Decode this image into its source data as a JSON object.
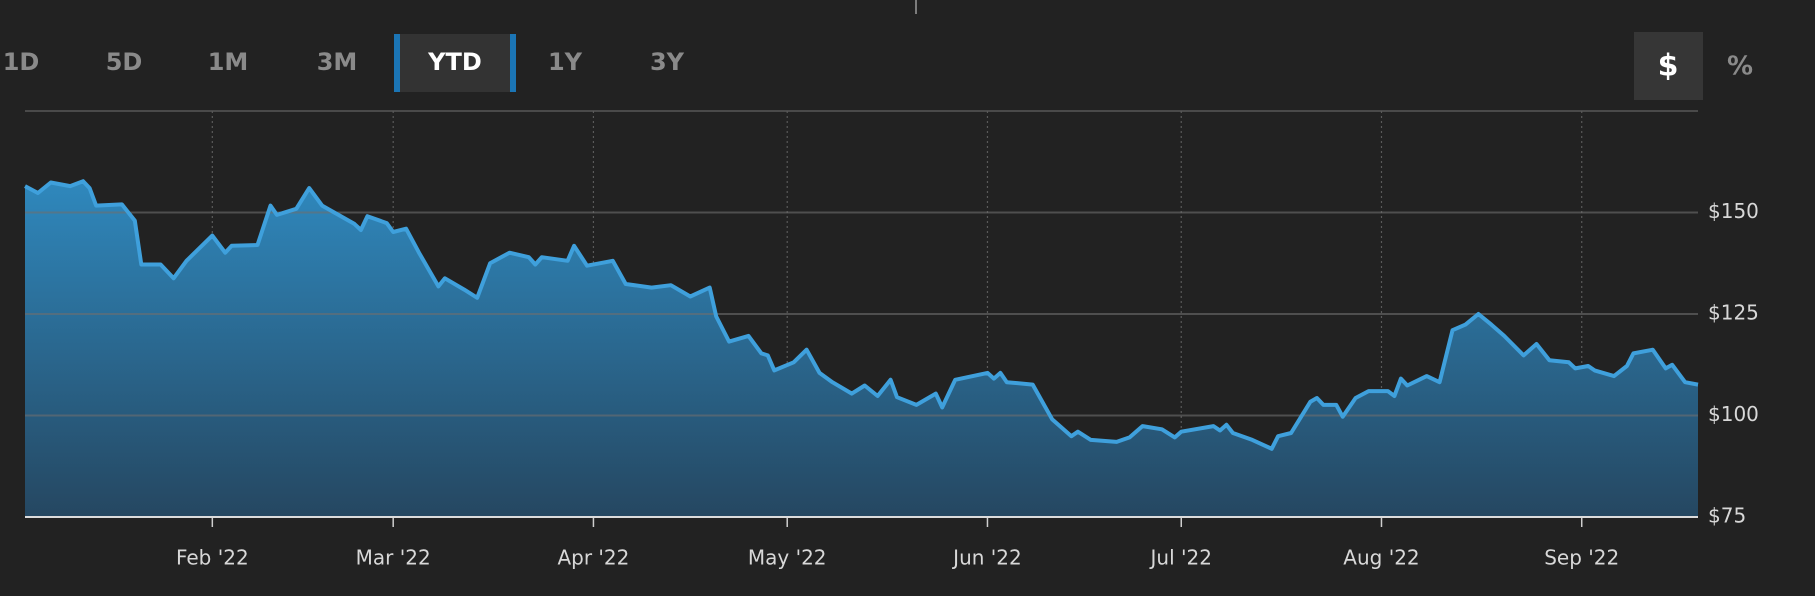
{
  "toolbar": {
    "ranges": [
      "1D",
      "5D",
      "1M",
      "3M",
      "YTD",
      "1Y",
      "3Y"
    ],
    "selected_range": "YTD",
    "units": [
      "$",
      "%"
    ],
    "selected_unit": "$"
  },
  "chart_data": {
    "type": "area",
    "color": "#3fa0dc",
    "grid": true,
    "x": [
      0,
      2,
      4,
      7,
      9,
      10,
      11,
      15,
      17,
      18,
      21,
      23,
      25,
      29,
      31,
      32,
      36,
      38,
      39,
      42,
      44,
      46,
      51,
      52,
      53,
      56,
      57,
      59,
      61,
      64,
      65,
      68,
      70,
      72,
      75,
      78,
      79,
      80,
      84,
      85,
      87,
      91,
      93,
      97,
      100,
      103,
      106,
      107,
      109,
      112,
      114,
      115,
      116,
      119,
      121,
      123,
      125,
      128,
      130,
      132,
      134,
      135,
      138,
      141,
      142,
      144,
      149,
      150,
      151,
      152,
      156,
      159,
      162,
      163,
      165,
      169,
      171,
      173,
      176,
      178,
      179,
      184,
      185,
      186,
      187,
      190,
      193,
      194,
      196,
      199,
      200,
      201,
      203,
      204,
      206,
      208,
      211,
      212,
      213,
      214,
      217,
      219,
      221,
      223,
      225,
      227,
      229,
      232,
      234,
      236,
      239,
      240,
      242,
      243,
      246,
      248,
      249,
      252,
      254,
      255,
      257,
      259
    ],
    "values": [
      156.5,
      154.8,
      157.4,
      156.5,
      157.7,
      156.0,
      151.7,
      152.0,
      148.0,
      137.2,
      137.2,
      133.8,
      138.1,
      144.3,
      140.1,
      141.8,
      142.0,
      151.7,
      149.4,
      150.9,
      156.0,
      151.7,
      147.2,
      145.7,
      149.1,
      147.4,
      145.2,
      146.0,
      140.1,
      131.8,
      133.8,
      131.0,
      129.0,
      137.5,
      140.1,
      139.0,
      137.2,
      139.0,
      138.1,
      141.8,
      136.9,
      138.1,
      132.4,
      131.5,
      132.1,
      129.3,
      131.5,
      124.4,
      118.2,
      119.6,
      115.3,
      114.8,
      111.1,
      113.1,
      116.2,
      110.5,
      108.2,
      105.4,
      107.4,
      104.8,
      108.8,
      104.5,
      102.6,
      105.4,
      102.0,
      108.8,
      110.5,
      109.1,
      110.5,
      108.2,
      107.6,
      99.1,
      94.9,
      96.0,
      94.0,
      93.5,
      94.6,
      97.4,
      96.6,
      94.6,
      96.0,
      97.4,
      96.3,
      97.7,
      95.7,
      94.0,
      91.8,
      94.9,
      95.7,
      103.4,
      104.3,
      102.6,
      102.6,
      99.7,
      104.3,
      106.0,
      106.0,
      104.8,
      109.1,
      107.4,
      109.7,
      108.2,
      121.0,
      122.4,
      125.0,
      122.4,
      119.6,
      114.8,
      117.6,
      113.6,
      113.1,
      111.6,
      112.2,
      111.1,
      109.7,
      112.2,
      115.3,
      116.2,
      111.6,
      112.5,
      108.2,
      107.6
    ],
    "xlim": [
      0,
      259
    ],
    "xticks": [
      {
        "value": 29,
        "label": "Feb '22"
      },
      {
        "value": 57,
        "label": "Mar '22"
      },
      {
        "value": 88,
        "label": "Apr '22"
      },
      {
        "value": 118,
        "label": "May '22"
      },
      {
        "value": 149,
        "label": "Jun '22"
      },
      {
        "value": 179,
        "label": "Jul '22"
      },
      {
        "value": 210,
        "label": "Aug '22"
      },
      {
        "value": 241,
        "label": "Sep '22"
      }
    ],
    "ylim": [
      75,
      175
    ],
    "yticks": [
      {
        "value": 75,
        "label": "$75"
      },
      {
        "value": 100,
        "label": "$100"
      },
      {
        "value": 125,
        "label": "$125"
      },
      {
        "value": 150,
        "label": "$150"
      }
    ]
  }
}
